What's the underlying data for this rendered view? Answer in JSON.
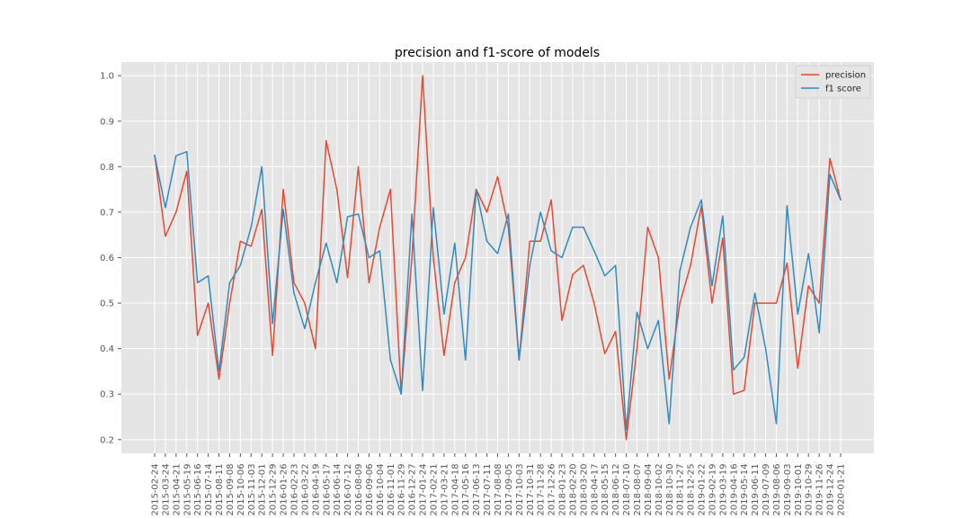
{
  "chart_data": {
    "type": "line",
    "title": "precision and f1-score of models",
    "xlabel": "",
    "ylabel": "",
    "ylim": [
      0.17,
      1.03
    ],
    "yticks": [
      "0.2",
      "0.3",
      "0.4",
      "0.5",
      "0.6",
      "0.7",
      "0.8",
      "0.9",
      "1.0"
    ],
    "grid": true,
    "legend_position": "top-right",
    "x": [
      "2015-02-24",
      "2015-03-24",
      "2015-04-21",
      "2015-05-19",
      "2015-06-16",
      "2015-07-14",
      "2015-08-11",
      "2015-09-08",
      "2015-10-06",
      "2015-11-03",
      "2015-12-01",
      "2015-12-29",
      "2016-01-26",
      "2016-02-23",
      "2016-03-22",
      "2016-04-19",
      "2016-05-17",
      "2016-06-14",
      "2016-07-12",
      "2016-08-09",
      "2016-09-06",
      "2016-10-04",
      "2016-11-01",
      "2016-11-29",
      "2016-12-27",
      "2017-01-24",
      "2017-02-21",
      "2017-03-21",
      "2017-04-18",
      "2017-05-16",
      "2017-06-13",
      "2017-07-11",
      "2017-08-08",
      "2017-09-05",
      "2017-10-03",
      "2017-10-31",
      "2017-11-28",
      "2017-12-26",
      "2018-01-23",
      "2018-02-20",
      "2018-03-20",
      "2018-04-17",
      "2018-05-15",
      "2018-06-12",
      "2018-07-10",
      "2018-08-07",
      "2018-09-04",
      "2018-10-02",
      "2018-10-30",
      "2018-11-27",
      "2018-12-25",
      "2019-01-22",
      "2019-02-19",
      "2019-03-19",
      "2019-04-16",
      "2019-05-14",
      "2019-06-11",
      "2019-07-09",
      "2019-08-06",
      "2019-09-03",
      "2019-10-01",
      "2019-10-29",
      "2019-11-26",
      "2019-12-24",
      "2020-01-21"
    ],
    "x_ticklabels": [
      "2015-02-24",
      "2015-03-24",
      "2015-04-21",
      "2015-05-19",
      "2015-06-16",
      "2015-07-14",
      "2015-08-11",
      "2015-09-08",
      "2015-10-06",
      "2015-11-03",
      "2015-12-01",
      "2015-12-29",
      "2016-01-26",
      "2016-02-23",
      "2016-03-22",
      "2016-04-19",
      "2016-05-17",
      "2016-06-14",
      "2016-07-12",
      "2016-08-09",
      "2016-09-06",
      "2016-10-04",
      "2016-11-01",
      "2016-11-29",
      "2016-12-27",
      "2017-01-24",
      "2017-02-21",
      "2017-03-21",
      "2017-04-18",
      "2017-05-16",
      "2017-06-13",
      "2017-07-11",
      "2017-08-08",
      "2017-09-05",
      "2017-10-03",
      "2017-10-31",
      "2017-11-28",
      "2017-12-26",
      "2018-01-23",
      "2018-02-20",
      "2018-03-20",
      "2018-04-17",
      "2018-05-15",
      "2018-06-12",
      "2018-07-10",
      "2018-08-07",
      "2018-09-04",
      "2018-10-02",
      "2018-10-30",
      "2018-11-27",
      "2018-12-25",
      "2019-01-22",
      "2019-02-19",
      "2019-03-19",
      "2019-04-16",
      "2019-05-14",
      "2019-06-11",
      "2019-07-09",
      "2019-08-06",
      "2019-09-03",
      "2019-10-01",
      "2019-10-29",
      "2019-11-26",
      "2019-12-24",
      "2020-01-21"
    ],
    "series": [
      {
        "name": "precision",
        "color": "#E24A33",
        "values": [
          0.825,
          0.647,
          0.7,
          0.79,
          0.429,
          0.5,
          0.333,
          0.5,
          0.636,
          0.625,
          0.706,
          0.385,
          0.75,
          0.545,
          0.5,
          0.4,
          0.857,
          0.75,
          0.556,
          0.8,
          0.545,
          0.667,
          0.75,
          0.3,
          0.6,
          1.0,
          0.6,
          0.385,
          0.545,
          0.6,
          0.75,
          0.7,
          0.778,
          0.667,
          0.375,
          0.636,
          0.636,
          0.727,
          0.462,
          0.563,
          0.583,
          0.5,
          0.389,
          0.438,
          0.2,
          0.4,
          0.667,
          0.6,
          0.333,
          0.5,
          0.583,
          0.714,
          0.5,
          0.643,
          0.3,
          0.308,
          0.5,
          0.5,
          0.5,
          0.588,
          0.357,
          0.538,
          0.5,
          0.818,
          0.727
        ]
      },
      {
        "name": "f1 score",
        "color": "#348ABD",
        "values": [
          0.825,
          0.71,
          0.824,
          0.833,
          0.545,
          0.56,
          0.35,
          0.545,
          0.583,
          0.667,
          0.8,
          0.455,
          0.706,
          0.522,
          0.444,
          0.545,
          0.632,
          0.545,
          0.69,
          0.696,
          0.6,
          0.615,
          0.375,
          0.3,
          0.696,
          0.308,
          0.71,
          0.476,
          0.632,
          0.375,
          0.75,
          0.636,
          0.609,
          0.696,
          0.375,
          0.583,
          0.7,
          0.615,
          0.6,
          0.667,
          0.667,
          0.615,
          0.56,
          0.583,
          0.222,
          0.48,
          0.4,
          0.462,
          0.235,
          0.571,
          0.667,
          0.727,
          0.538,
          0.692,
          0.353,
          0.381,
          0.522,
          0.4,
          0.235,
          0.714,
          0.476,
          0.609,
          0.435,
          0.783,
          0.727
        ]
      }
    ]
  }
}
